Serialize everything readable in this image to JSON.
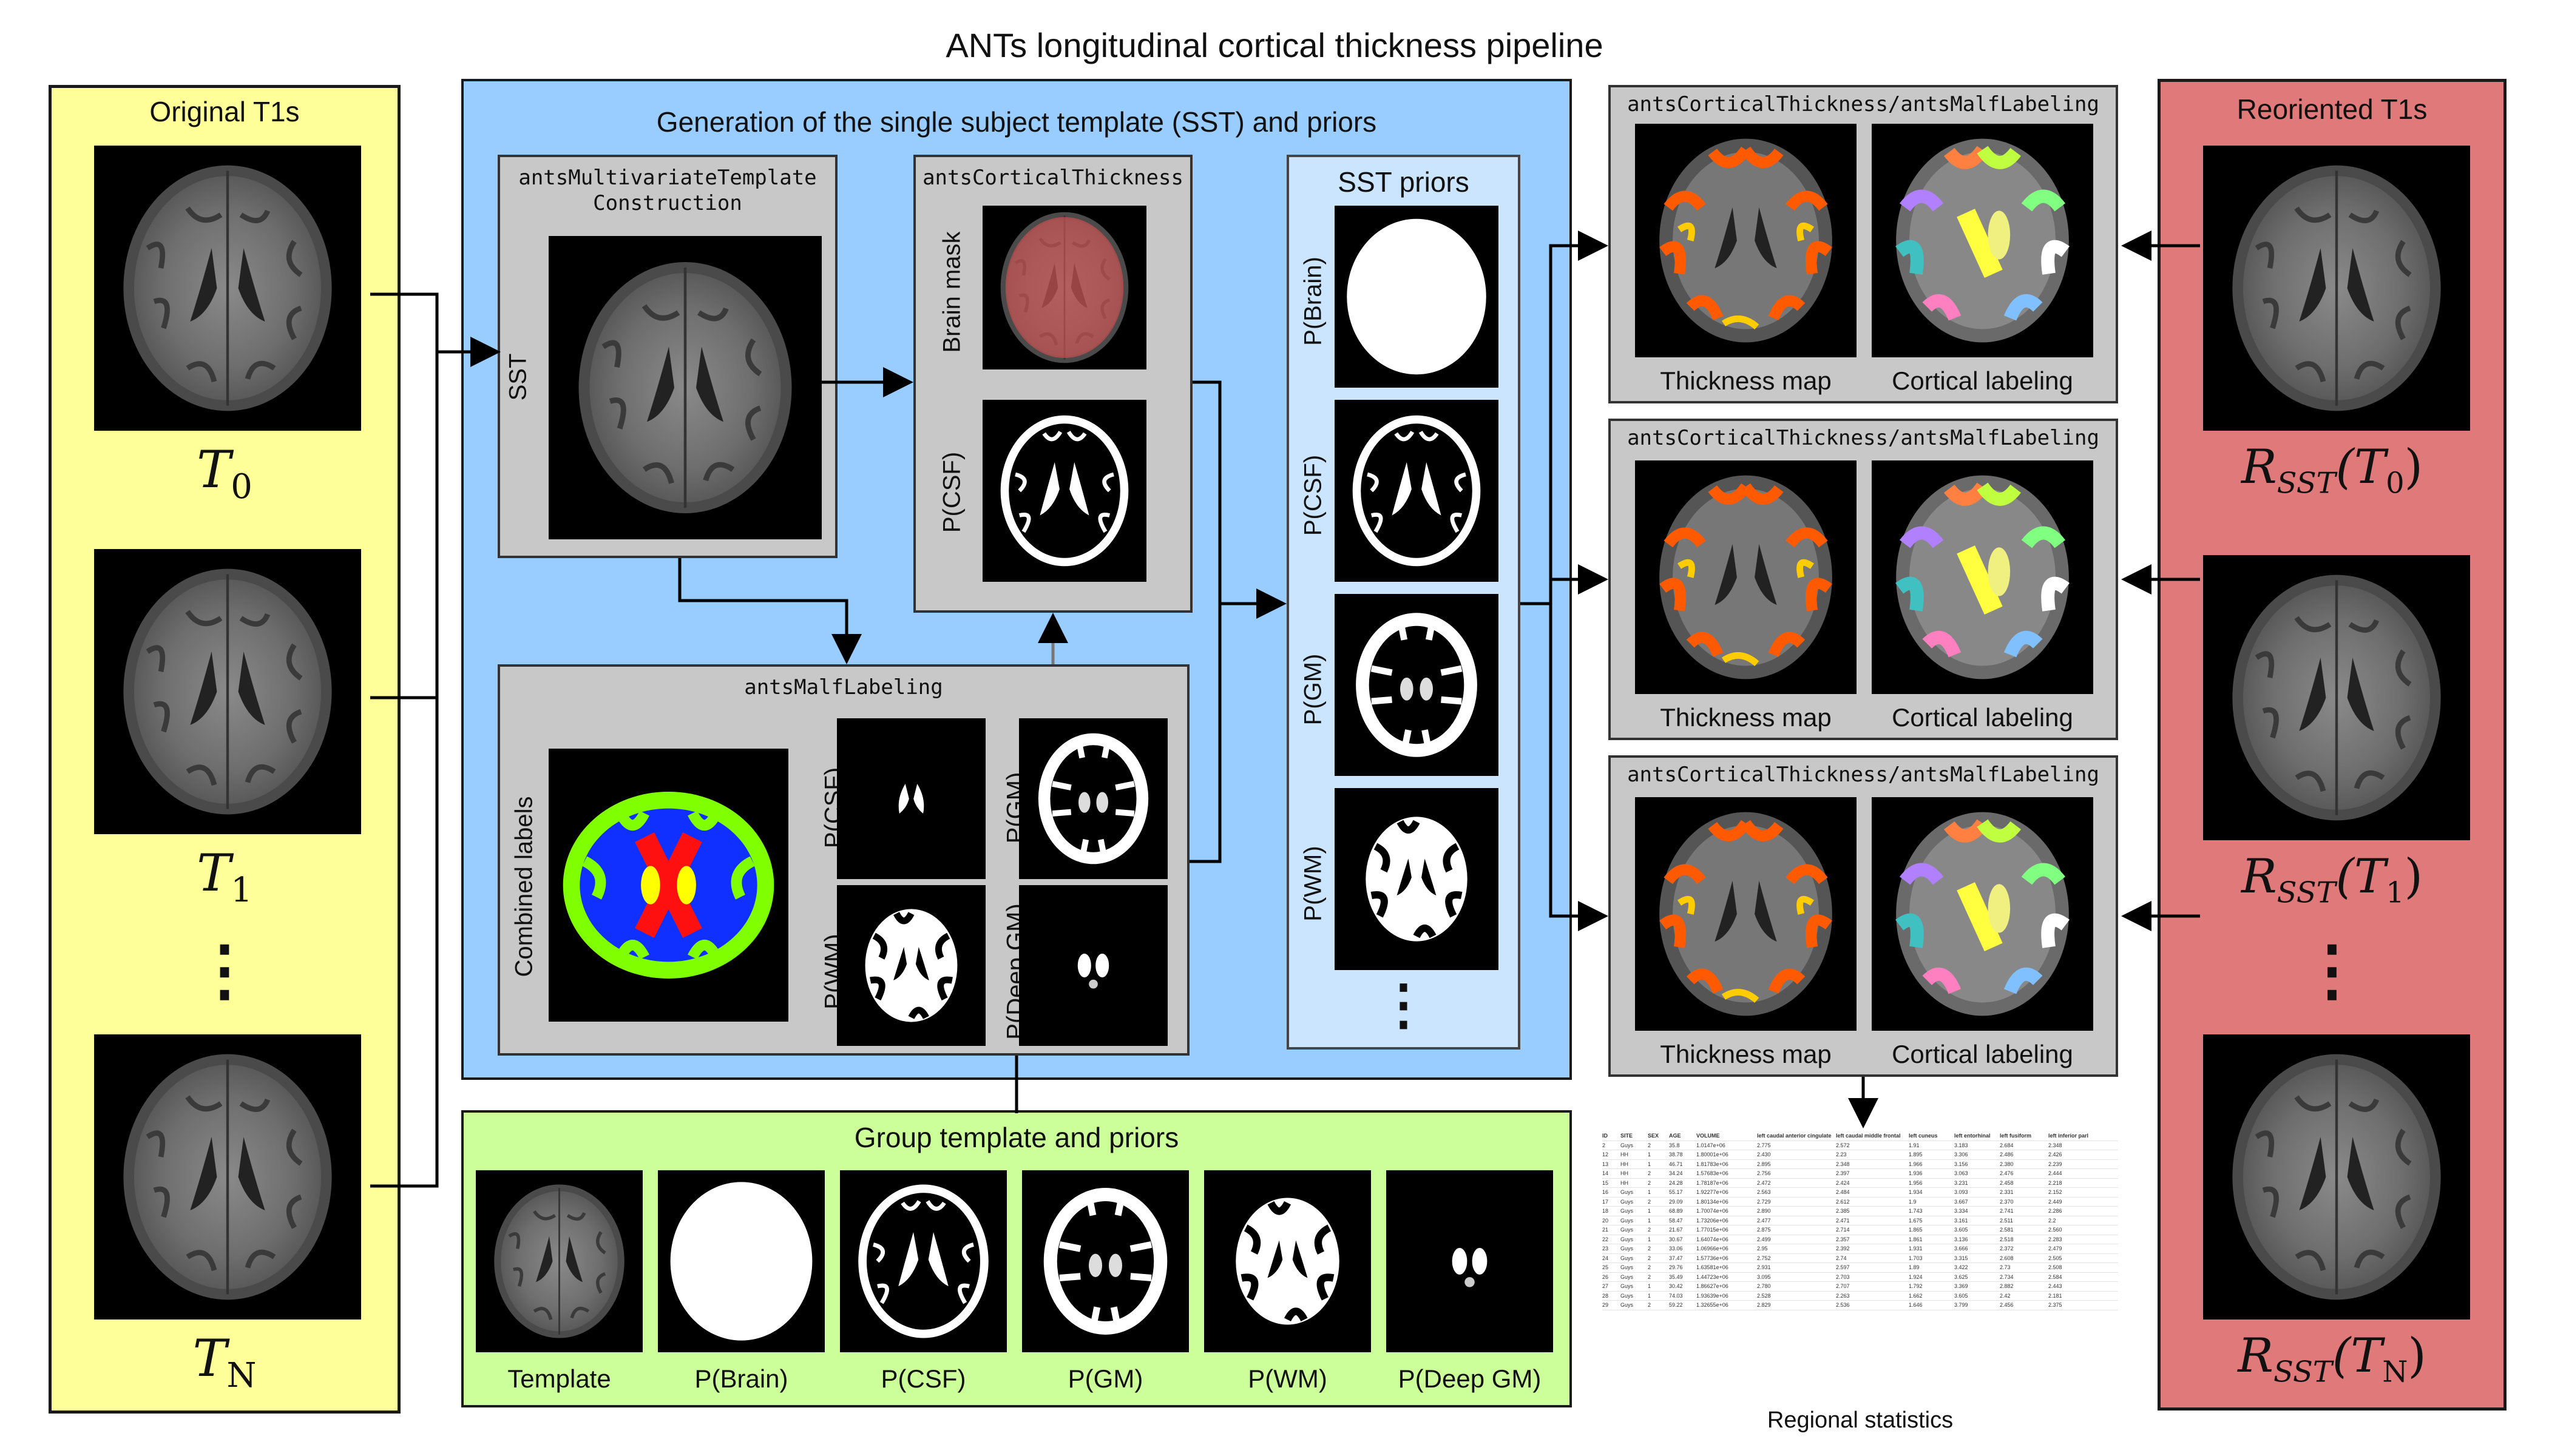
{
  "title": "ANTs longitudinal cortical thickness pipeline",
  "colors": {
    "original_bg": "#ffff99",
    "sst_bg": "#99ccff",
    "group_bg": "#ccff99",
    "reoriented_bg": "#e07a7a",
    "box_gray": "#c8c8c8",
    "priors_bg": "#cce5ff"
  },
  "original": {
    "title": "Original T1s",
    "t0": "T",
    "t0_sub": "0",
    "t1": "T",
    "t1_sub": "1",
    "tn": "T",
    "tn_sub": "N",
    "dots": "⋮"
  },
  "sst": {
    "title": "Generation of the single subject template (SST) and priors",
    "template_construction": {
      "title_line1": "antsMultivariateTemplate",
      "title_line2": "Construction",
      "label": "SST"
    },
    "cortical_thickness": {
      "title": "antsCorticalThickness",
      "brain_mask": "Brain mask",
      "pcsf": "P(CSF)"
    },
    "malf": {
      "title": "antsMalfLabeling",
      "combined": "Combined labels",
      "pcsf": "P(CSF)",
      "pgm": "P(GM)",
      "pwm": "P(WM)",
      "pdeepgm": "P(Deep GM)"
    },
    "priors": {
      "title": "SST priors",
      "pbrain": "P(Brain)",
      "pcsf": "P(CSF)",
      "pgm": "P(GM)",
      "pwm": "P(WM)",
      "dots": "⋮"
    }
  },
  "outputs": {
    "box_title": "antsCorticalThickness/antsMalfLabeling",
    "thickness": "Thickness map",
    "labeling": "Cortical labeling"
  },
  "group": {
    "title": "Group template and priors",
    "items": [
      "Template",
      "P(Brain)",
      "P(CSF)",
      "P(GM)",
      "P(WM)",
      "P(Deep GM)"
    ]
  },
  "reoriented": {
    "title": "Reoriented T1s",
    "r": "R",
    "r_sub": "SST",
    "r0_arg": "(T",
    "r0_sub": "0",
    "r1_sub": "1",
    "rn_sub": "N",
    "close": ")",
    "dots": "⋮"
  },
  "stats": {
    "caption": "Regional statistics",
    "headers": [
      "ID",
      "SITE",
      "SEX",
      "AGE",
      "VOLUME",
      "left caudal anterior cingulate",
      "left caudal middle frontal",
      "left cuneus",
      "left entorhinal",
      "left fusiform",
      "left inferior parl"
    ],
    "rows": [
      [
        "2",
        "Guys",
        "2",
        "35.8",
        "1.0147e+06",
        "2.775",
        "2.572",
        "1.91",
        "3.183",
        "2.684",
        "2.348"
      ],
      [
        "12",
        "HH",
        "1",
        "38.78",
        "1.80001e+06",
        "2.430",
        "2.23",
        "1.895",
        "3.306",
        "2.486",
        "2.426"
      ],
      [
        "13",
        "HH",
        "1",
        "46.71",
        "1.81783e+06",
        "2.895",
        "2.348",
        "1.966",
        "3.156",
        "2.380",
        "2.239"
      ],
      [
        "14",
        "HH",
        "2",
        "34.24",
        "1.57683e+06",
        "2.756",
        "2.397",
        "1.936",
        "3.063",
        "2.476",
        "2.444"
      ],
      [
        "15",
        "HH",
        "2",
        "24.28",
        "1.78187e+06",
        "2.472",
        "2.424",
        "1.956",
        "3.231",
        "2.458",
        "2.218"
      ],
      [
        "16",
        "Guys",
        "1",
        "55.17",
        "1.92277e+06",
        "2.563",
        "2.484",
        "1.934",
        "3.093",
        "2.331",
        "2.152"
      ],
      [
        "17",
        "Guys",
        "2",
        "29.09",
        "1.80134e+06",
        "2.729",
        "2.612",
        "1.9",
        "3.667",
        "2.370",
        "2.449"
      ],
      [
        "18",
        "Guys",
        "1",
        "68.89",
        "1.70074e+06",
        "2.890",
        "2.385",
        "1.743",
        "3.334",
        "2.741",
        "2.286"
      ],
      [
        "20",
        "Guys",
        "1",
        "58.47",
        "1.73206e+06",
        "2.477",
        "2.471",
        "1.675",
        "3.161",
        "2.511",
        "2.2"
      ],
      [
        "21",
        "Guys",
        "2",
        "21.67",
        "1.77015e+06",
        "2.875",
        "2.714",
        "1.865",
        "3.605",
        "2.581",
        "2.560"
      ],
      [
        "22",
        "Guys",
        "1",
        "30.67",
        "1.64074e+06",
        "2.499",
        "2.357",
        "1.861",
        "3.136",
        "2.518",
        "2.283"
      ],
      [
        "23",
        "Guys",
        "2",
        "33.06",
        "1.06966e+06",
        "2.95",
        "2.392",
        "1.931",
        "3.666",
        "2.372",
        "2.479"
      ],
      [
        "24",
        "Guys",
        "2",
        "37.47",
        "1.57736e+06",
        "2.752",
        "2.74",
        "1.703",
        "3.315",
        "2.608",
        "2.505"
      ],
      [
        "25",
        "Guys",
        "2",
        "29.76",
        "1.63581e+06",
        "2.931",
        "2.597",
        "1.89",
        "3.422",
        "2.73",
        "2.508"
      ],
      [
        "26",
        "Guys",
        "2",
        "35.49",
        "1.44723e+06",
        "3.095",
        "2.703",
        "1.924",
        "3.625",
        "2.734",
        "2.584"
      ],
      [
        "27",
        "Guys",
        "1",
        "30.42",
        "1.86627e+06",
        "2.780",
        "2.707",
        "1.792",
        "3.369",
        "2.882",
        "2.443"
      ],
      [
        "28",
        "Guys",
        "1",
        "74.03",
        "1.93639e+06",
        "2.528",
        "2.263",
        "1.662",
        "3.605",
        "2.42",
        "2.181"
      ],
      [
        "29",
        "Guys",
        "2",
        "59.22",
        "1.32655e+06",
        "2.829",
        "2.536",
        "1.646",
        "3.799",
        "2.456",
        "2.375"
      ]
    ]
  }
}
